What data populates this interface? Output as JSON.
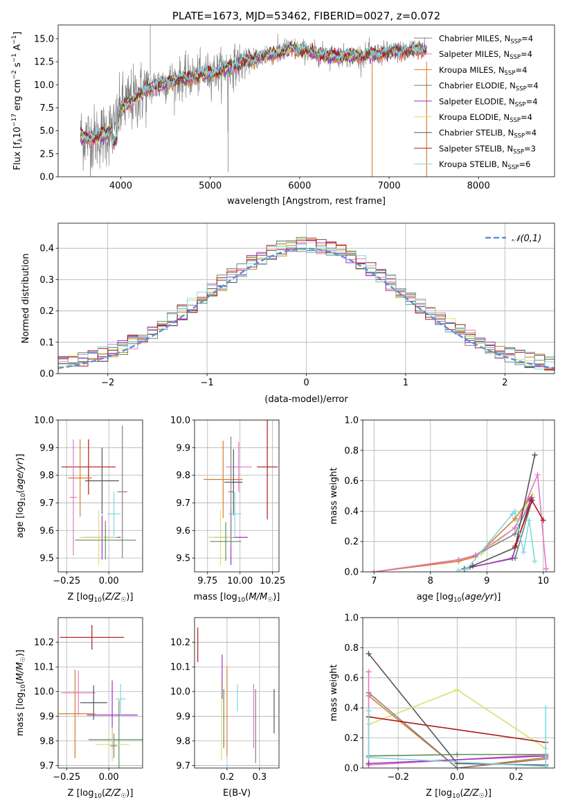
{
  "colors": {
    "Chabrier MILES": "#808080",
    "Salpeter MILES": "#e377c2",
    "Kroupa MILES": "#d97a28",
    "Chabrier ELODIE": "#5f8c5f",
    "Salpeter ELODIE": "#9b30c8",
    "Kroupa ELODIE": "#d8e070",
    "Chabrier STELIB": "#555555",
    "Salpeter STELIB": "#b01818",
    "Kroupa STELIB": "#7fd8dc",
    "gauss": "#5b8fd6"
  },
  "chart_data": [
    {
      "id": "spectrum",
      "type": "line",
      "title": "PLATE=1673, MJD=53462, FIBERID=0027, z=0.072",
      "xlabel": "wavelength [Angstrom, rest frame]",
      "ylabel": "Flux [f_λ 10^-17 erg cm^-2 s^-1 A^-1]",
      "xlim": [
        3300,
        8850
      ],
      "ylim": [
        0,
        16.5
      ],
      "xticks": [
        4000,
        5000,
        6000,
        7000,
        8000
      ],
      "yticks": [
        0.0,
        2.5,
        5.0,
        7.5,
        10.0,
        12.5,
        15.0
      ],
      "legend": [
        {
          "label": "Chabrier MILES, N_SSP=4",
          "color": "#808080"
        },
        {
          "label": "Salpeter MILES, N_SSP=4",
          "color": "#e377c2"
        },
        {
          "label": "Kroupa MILES, N_SSP=4",
          "color": "#d97a28"
        },
        {
          "label": "Chabrier ELODIE, N_SSP=4",
          "color": "#5f8c5f"
        },
        {
          "label": "Salpeter ELODIE, N_SSP=4",
          "color": "#9b30c8"
        },
        {
          "label": "Kroupa ELODIE, N_SSP=4",
          "color": "#d8e070"
        },
        {
          "label": "Chabrier STELIB, N_SSP=4",
          "color": "#555555"
        },
        {
          "label": "Salpeter STELIB, N_SSP=3",
          "color": "#b01818"
        },
        {
          "label": "Kroupa STELIB, N_SSP=6",
          "color": "#7fd8dc"
        }
      ],
      "continuum": {
        "x": [
          3550,
          3700,
          3850,
          3950,
          4000,
          4100,
          4300,
          4500,
          4700,
          4900,
          5100,
          5300,
          5500,
          5700,
          5900,
          6100,
          6300,
          6500,
          6700,
          6900,
          7100,
          7300,
          7500,
          7700,
          7900,
          8100,
          8300,
          8500,
          8700
        ],
        "y": [
          4.4,
          4.2,
          4.8,
          5.5,
          7.5,
          8.1,
          9.6,
          10.3,
          10.7,
          11.1,
          11.5,
          12.2,
          12.9,
          13.4,
          14.0,
          13.6,
          13.2,
          13.1,
          13.2,
          13.4,
          13.6,
          13.8,
          14.0,
          14.1,
          14.3,
          14.4,
          14.5,
          14.5,
          14.6
        ]
      }
    },
    {
      "id": "residuals",
      "type": "bar",
      "xlabel": "(data-model)/error",
      "ylabel": "Normed distribution",
      "xlim": [
        -2.5,
        2.5
      ],
      "ylim": [
        0,
        0.48
      ],
      "xticks": [
        -2,
        -1,
        0,
        1,
        2
      ],
      "yticks": [
        0.0,
        0.1,
        0.2,
        0.3,
        0.4
      ],
      "gauss_label": "𝒩(0,1)"
    },
    {
      "id": "age_vs_Z",
      "type": "scatter",
      "xlabel": "Z [log10(Z/Z☉)]",
      "ylabel": "age  [log10(age/yr)]",
      "xlim": [
        -0.3,
        0.2
      ],
      "ylim": [
        9.45,
        10.0
      ],
      "xticks": [
        -0.25,
        0.0
      ],
      "yticks": [
        9.5,
        9.6,
        9.7,
        9.8,
        9.9,
        10.0
      ],
      "points": [
        {
          "name": "Salpeter STELIB",
          "x": -0.12,
          "y": 9.83,
          "xe": 0.16,
          "ye": 0.1
        },
        {
          "name": "Chabrier STELIB",
          "x": -0.04,
          "y": 9.78,
          "xe": 0.1,
          "ye": 0.12
        },
        {
          "name": "Kroupa MILES",
          "x": -0.17,
          "y": 9.79,
          "xe": 0.07,
          "ye": 0.14
        },
        {
          "name": "Kroupa STELIB",
          "x": 0.03,
          "y": 9.66,
          "xe": 0.04,
          "ye": 0.08
        },
        {
          "name": "Salpeter ELODIE",
          "x": -0.04,
          "y": 9.575,
          "xe": 0.11,
          "ye": 0.08
        },
        {
          "name": "Kroupa ELODIE",
          "x": -0.06,
          "y": 9.575,
          "xe": 0.11,
          "ye": 0.1
        },
        {
          "name": "Chabrier ELODIE",
          "x": -0.02,
          "y": 9.565,
          "xe": 0.18,
          "ye": 0.07
        },
        {
          "name": "Salpeter MILES",
          "x": -0.21,
          "y": 9.72,
          "xe": 0.02,
          "ye": 0.21
        },
        {
          "name": "Chabrier MILES",
          "x": 0.08,
          "y": 9.74,
          "xe": 0.03,
          "ye": 0.24
        }
      ]
    },
    {
      "id": "age_vs_mass",
      "type": "scatter",
      "xlabel": "mass [log10(M/M☉)]",
      "ylabel": "",
      "xlim": [
        9.65,
        10.3
      ],
      "ylim": [
        9.45,
        10.0
      ],
      "xticks": [
        9.75,
        10.0,
        10.25
      ],
      "yticks": [
        9.5,
        9.6,
        9.7,
        9.8,
        9.9,
        10.0
      ],
      "points": [
        {
          "name": "Salpeter STELIB",
          "x": 10.21,
          "y": 9.83,
          "xe": 0.08,
          "ye": 0.19
        },
        {
          "name": "Salpeter MILES",
          "x": 9.99,
          "y": 9.83,
          "xe": 0.1,
          "ye": 0.09
        },
        {
          "name": "Kroupa MILES",
          "x": 9.87,
          "y": 9.785,
          "xe": 0.15,
          "ye": 0.14
        },
        {
          "name": "Chabrier STELIB",
          "x": 9.95,
          "y": 9.775,
          "xe": 0.07,
          "ye": 0.12
        },
        {
          "name": "Kroupa STELIB",
          "x": 9.96,
          "y": 9.66,
          "xe": 0.05,
          "ye": 0.08
        },
        {
          "name": "Salpeter ELODIE",
          "x": 9.93,
          "y": 9.575,
          "xe": 0.13,
          "ye": 0.1
        },
        {
          "name": "Kroupa ELODIE",
          "x": 9.85,
          "y": 9.575,
          "xe": 0.1,
          "ye": 0.1
        },
        {
          "name": "Chabrier ELODIE",
          "x": 9.89,
          "y": 9.56,
          "xe": 0.12,
          "ye": 0.07
        },
        {
          "name": "Chabrier MILES",
          "x": 9.93,
          "y": 9.74,
          "xe": 0.02,
          "ye": 0.2
        }
      ]
    },
    {
      "id": "weight_vs_age",
      "type": "line",
      "xlabel": "age  [log10(age/yr)]",
      "ylabel": "mass weight",
      "xlim": [
        6.8,
        10.2
      ],
      "ylim": [
        0,
        1.0
      ],
      "xticks": [
        7,
        8,
        9,
        10
      ],
      "yticks": [
        0.0,
        0.2,
        0.4,
        0.6,
        0.8,
        1.0
      ],
      "series": [
        {
          "name": "Kroupa ELODIE",
          "x": [
            7.0,
            8.5,
            8.9,
            9.5,
            9.8
          ],
          "y": [
            0.0,
            0.07,
            0.12,
            0.29,
            0.51
          ]
        },
        {
          "name": "Chabrier MILES",
          "x": [
            7.0,
            8.5,
            8.8,
            9.5,
            9.8
          ],
          "y": [
            0.0,
            0.08,
            0.11,
            0.25,
            0.49
          ]
        },
        {
          "name": "Kroupa MILES",
          "x": [
            7.0,
            8.5,
            8.8,
            9.5,
            9.75
          ],
          "y": [
            0.0,
            0.07,
            0.1,
            0.35,
            0.48
          ]
        },
        {
          "name": "Salpeter MILES",
          "x": [
            7.0,
            8.5,
            8.8,
            9.5,
            9.9,
            10.05
          ],
          "y": [
            0.0,
            0.08,
            0.11,
            0.29,
            0.64,
            0.02
          ]
        },
        {
          "name": "Chabrier ELODIE",
          "x": [
            8.7,
            9.5,
            9.8
          ],
          "y": [
            0.03,
            0.09,
            0.47
          ]
        },
        {
          "name": "Salpeter ELODIE",
          "x": [
            8.6,
            9.45,
            9.78
          ],
          "y": [
            0.02,
            0.09,
            0.48
          ]
        },
        {
          "name": "Chabrier STELIB",
          "x": [
            8.6,
            8.75,
            9.5,
            9.85
          ],
          "y": [
            0.02,
            0.04,
            0.16,
            0.77
          ]
        },
        {
          "name": "Salpeter STELIB",
          "x": [
            9.5,
            9.8,
            10.0
          ],
          "y": [
            0.17,
            0.47,
            0.34
          ]
        },
        {
          "name": "Kroupa STELIB",
          "x": [
            8.5,
            8.65,
            9.45,
            9.5,
            9.65,
            9.75,
            9.85
          ],
          "y": [
            0.01,
            0.02,
            0.38,
            0.4,
            0.13,
            0.34,
            0.07
          ]
        }
      ]
    },
    {
      "id": "mass_vs_Z",
      "type": "scatter",
      "xlabel": "Z [log10(Z/Z☉)]",
      "ylabel": "mass [log10(M/M☉)]",
      "xlim": [
        -0.3,
        0.2
      ],
      "ylim": [
        9.69,
        10.3
      ],
      "xticks": [
        -0.25,
        0.0
      ],
      "yticks": [
        9.7,
        9.8,
        9.9,
        10.0,
        10.1,
        10.2
      ],
      "points": [
        {
          "name": "Salpeter STELIB",
          "x": -0.1,
          "y": 10.22,
          "xe": 0.19,
          "ye": 0.05
        },
        {
          "name": "Salpeter MILES",
          "x": -0.18,
          "y": 9.995,
          "xe": 0.1,
          "ye": 0.09
        },
        {
          "name": "Chabrier STELIB",
          "x": -0.09,
          "y": 9.955,
          "xe": 0.08,
          "ye": 0.07
        },
        {
          "name": "Kroupa STELIB",
          "x": 0.07,
          "y": 9.97,
          "xe": 0.03,
          "ye": 0.06
        },
        {
          "name": "Kroupa MILES",
          "x": -0.2,
          "y": 9.91,
          "xe": 0.12,
          "ye": 0.18
        },
        {
          "name": "Salpeter ELODIE",
          "x": 0.02,
          "y": 9.905,
          "xe": 0.15,
          "ye": 0.14
        },
        {
          "name": "Chabrier ELODIE",
          "x": 0.06,
          "y": 9.805,
          "xe": 0.18,
          "ye": 0.16
        },
        {
          "name": "Kroupa ELODIE",
          "x": 0.02,
          "y": 9.785,
          "xe": 0.1,
          "ye": 0.07
        },
        {
          "name": "Chabrier MILES",
          "x": 0.03,
          "y": 9.78,
          "xe": 0.02,
          "ye": 0.05
        }
      ]
    },
    {
      "id": "mass_vs_EBV",
      "type": "scatter",
      "xlabel": "E(B-V)",
      "ylabel": "",
      "xlim": [
        0.1,
        0.36
      ],
      "ylim": [
        9.69,
        10.3
      ],
      "xticks": [
        0.2,
        0.3
      ],
      "yticks": [
        9.7,
        9.8,
        9.9,
        10.0,
        10.1,
        10.2
      ],
      "points": [
        {
          "name": "Salpeter STELIB",
          "x": 0.11,
          "y": 10.19,
          "xe": 0,
          "ye": 0.07
        },
        {
          "name": "Salpeter ELODIE",
          "x": 0.185,
          "y": 10.06,
          "xe": 0,
          "ye": 0.09
        },
        {
          "name": "Kroupa ELODIE",
          "x": 0.183,
          "y": 9.89,
          "xe": 0,
          "ye": 0.17
        },
        {
          "name": "Chabrier ELODIE",
          "x": 0.19,
          "y": 9.89,
          "xe": 0,
          "ye": 0.12
        },
        {
          "name": "Kroupa MILES",
          "x": 0.2,
          "y": 9.92,
          "xe": 0,
          "ye": 0.18
        },
        {
          "name": "Kroupa STELIB",
          "x": 0.232,
          "y": 9.975,
          "xe": 0,
          "ye": 0.055
        },
        {
          "name": "Salpeter MILES",
          "x": 0.282,
          "y": 9.9,
          "xe": 0,
          "ye": 0.13
        },
        {
          "name": "Chabrier MILES",
          "x": 0.288,
          "y": 9.86,
          "xe": 0,
          "ye": 0.15
        },
        {
          "name": "Chabrier STELIB",
          "x": 0.345,
          "y": 9.92,
          "xe": 0,
          "ye": 0.09
        }
      ]
    },
    {
      "id": "weight_vs_Z",
      "type": "line",
      "xlabel": "Z [log10(Z/Z☉)]",
      "ylabel": "mass weight",
      "xlim": [
        -0.32,
        0.33
      ],
      "ylim": [
        0,
        1.0
      ],
      "xticks": [
        -0.2,
        0.0,
        0.2
      ],
      "yticks": [
        0.0,
        0.2,
        0.4,
        0.6,
        0.8,
        1.0
      ],
      "series": [
        {
          "name": "Chabrier STELIB",
          "x": [
            -0.3,
            0.0,
            0.3
          ],
          "y": [
            0.76,
            0.03,
            0.02
          ]
        },
        {
          "name": "Kroupa ELODIE",
          "x": [
            -0.3,
            0.0,
            0.3
          ],
          "y": [
            0.29,
            0.52,
            0.13
          ]
        },
        {
          "name": "Kroupa MILES",
          "x": [
            -0.3,
            0.0,
            0.3
          ],
          "y": [
            0.48,
            0.0,
            0.07
          ]
        },
        {
          "name": "Chabrier MILES",
          "x": [
            -0.3,
            0.0,
            0.3
          ],
          "y": [
            0.5,
            0.0,
            0.06
          ]
        },
        {
          "name": "Salpeter MILES",
          "x": [
            -0.3,
            -0.3,
            0.3
          ],
          "y": [
            0.64,
            0.02,
            0.09
          ]
        },
        {
          "name": "Salpeter STELIB",
          "x": [
            -0.3,
            0.3
          ],
          "y": [
            0.34,
            0.17
          ]
        },
        {
          "name": "Chabrier ELODIE",
          "x": [
            -0.3,
            0.0,
            0.3
          ],
          "y": [
            0.08,
            0.09,
            0.09
          ]
        },
        {
          "name": "Salpeter ELODIE",
          "x": [
            -0.3,
            0.3
          ],
          "y": [
            0.03,
            0.08
          ]
        },
        {
          "name": "Kroupa STELIB",
          "x": [
            -0.3,
            -0.3,
            0.3,
            0.3
          ],
          "y": [
            0.38,
            0.07,
            0.01,
            0.4
          ]
        }
      ]
    }
  ]
}
